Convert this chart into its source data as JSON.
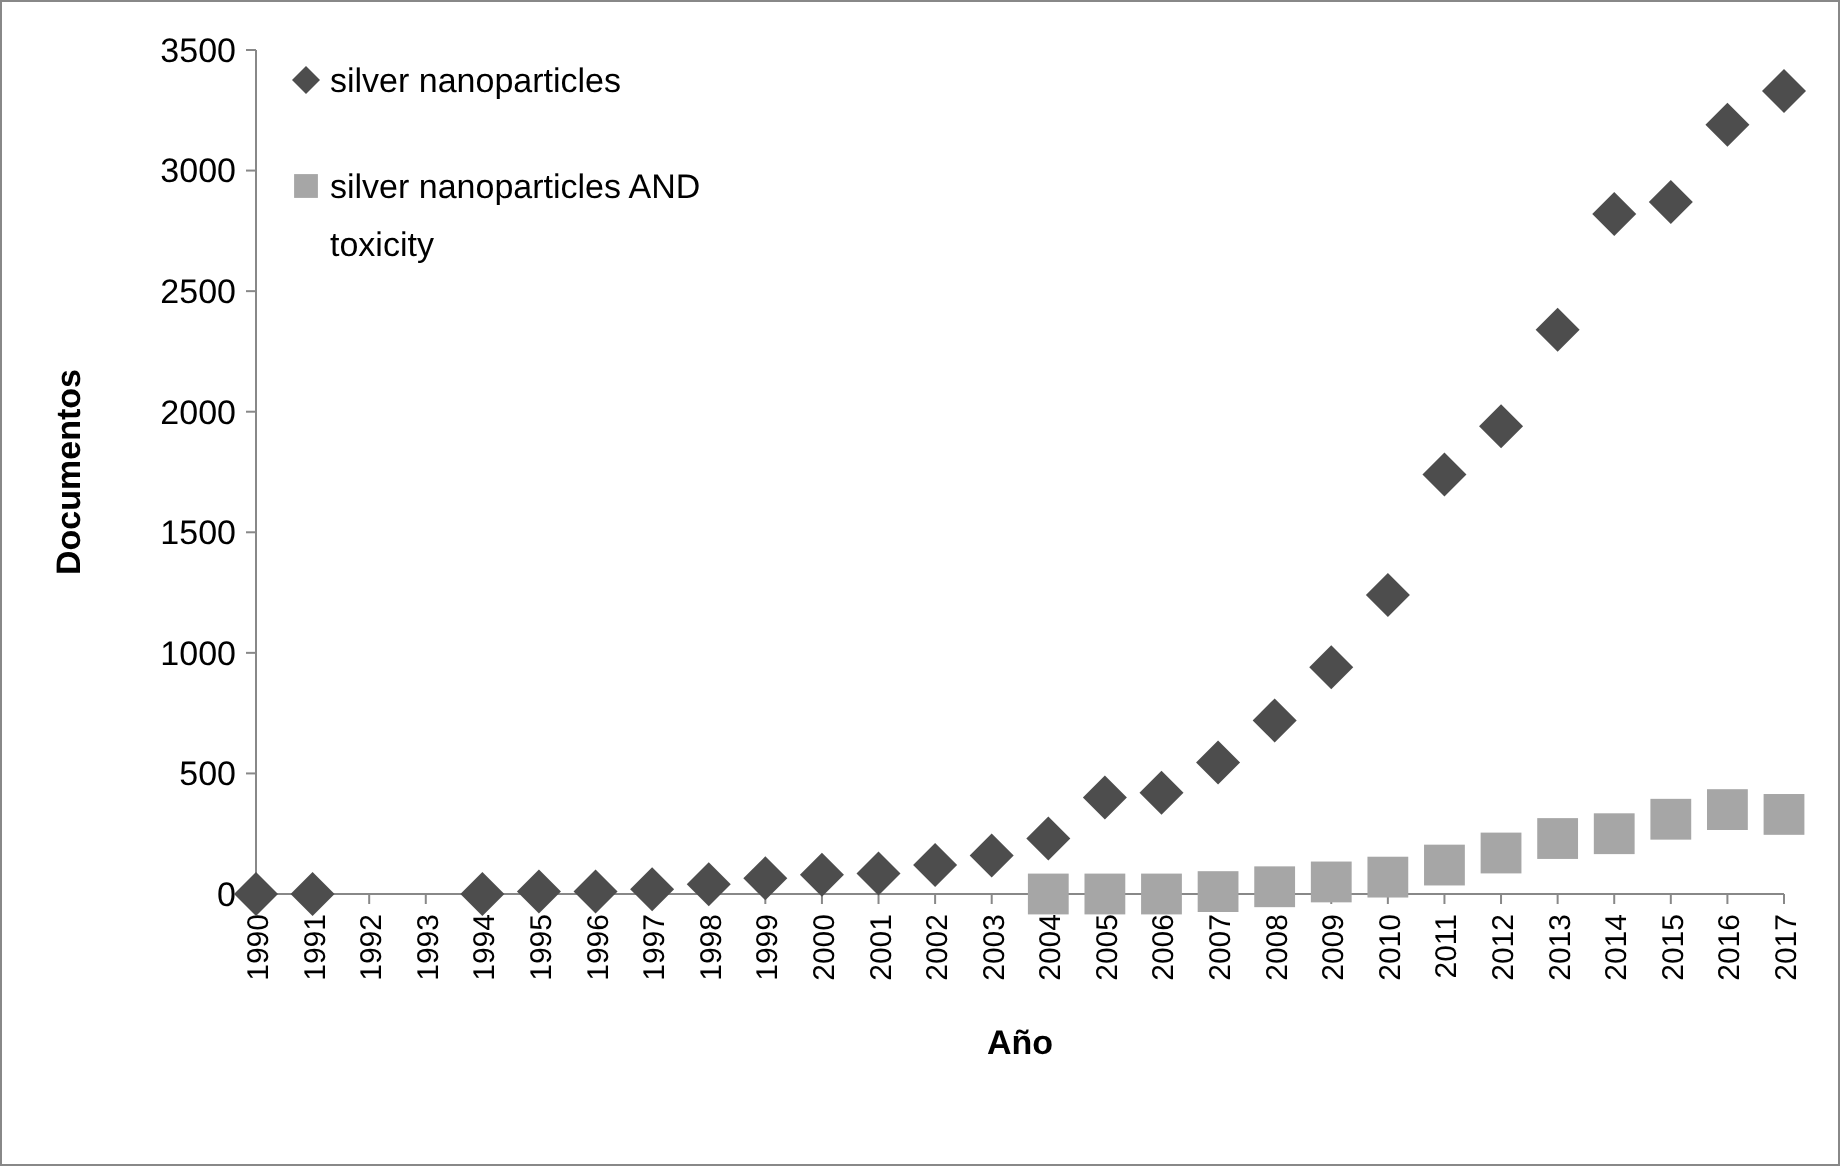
{
  "chart_data": {
    "type": "scatter",
    "xlabel": "Año",
    "ylabel": "Documentos",
    "categories": [
      "1990",
      "1991",
      "1992",
      "1993",
      "1994",
      "1995",
      "1996",
      "1997",
      "1998",
      "1999",
      "2000",
      "2001",
      "2002",
      "2003",
      "2004",
      "2005",
      "2006",
      "2007",
      "2008",
      "2009",
      "2010",
      "2011",
      "2012",
      "2013",
      "2014",
      "2015",
      "2016",
      "2017"
    ],
    "series": [
      {
        "name": "silver nanoparticles",
        "color": "#4d4d4d",
        "marker": "diamond",
        "values": [
          0,
          0,
          null,
          null,
          0,
          10,
          10,
          20,
          40,
          65,
          80,
          85,
          120,
          160,
          230,
          400,
          420,
          545,
          720,
          940,
          1240,
          1740,
          1940,
          2340,
          2820,
          2870,
          3190,
          3330
        ]
      },
      {
        "name": "silver nanoparticles AND toxicity",
        "color": "#a6a6a6",
        "marker": "square",
        "values": [
          null,
          null,
          null,
          null,
          null,
          null,
          null,
          null,
          null,
          null,
          null,
          null,
          null,
          null,
          0,
          0,
          0,
          10,
          30,
          50,
          70,
          120,
          170,
          230,
          250,
          310,
          350,
          330
        ]
      }
    ],
    "ylim": [
      0,
      3500
    ],
    "yticks": [
      0,
      500,
      1000,
      1500,
      2000,
      2500,
      3000,
      3500
    ],
    "grid": false,
    "legend": "top left"
  }
}
